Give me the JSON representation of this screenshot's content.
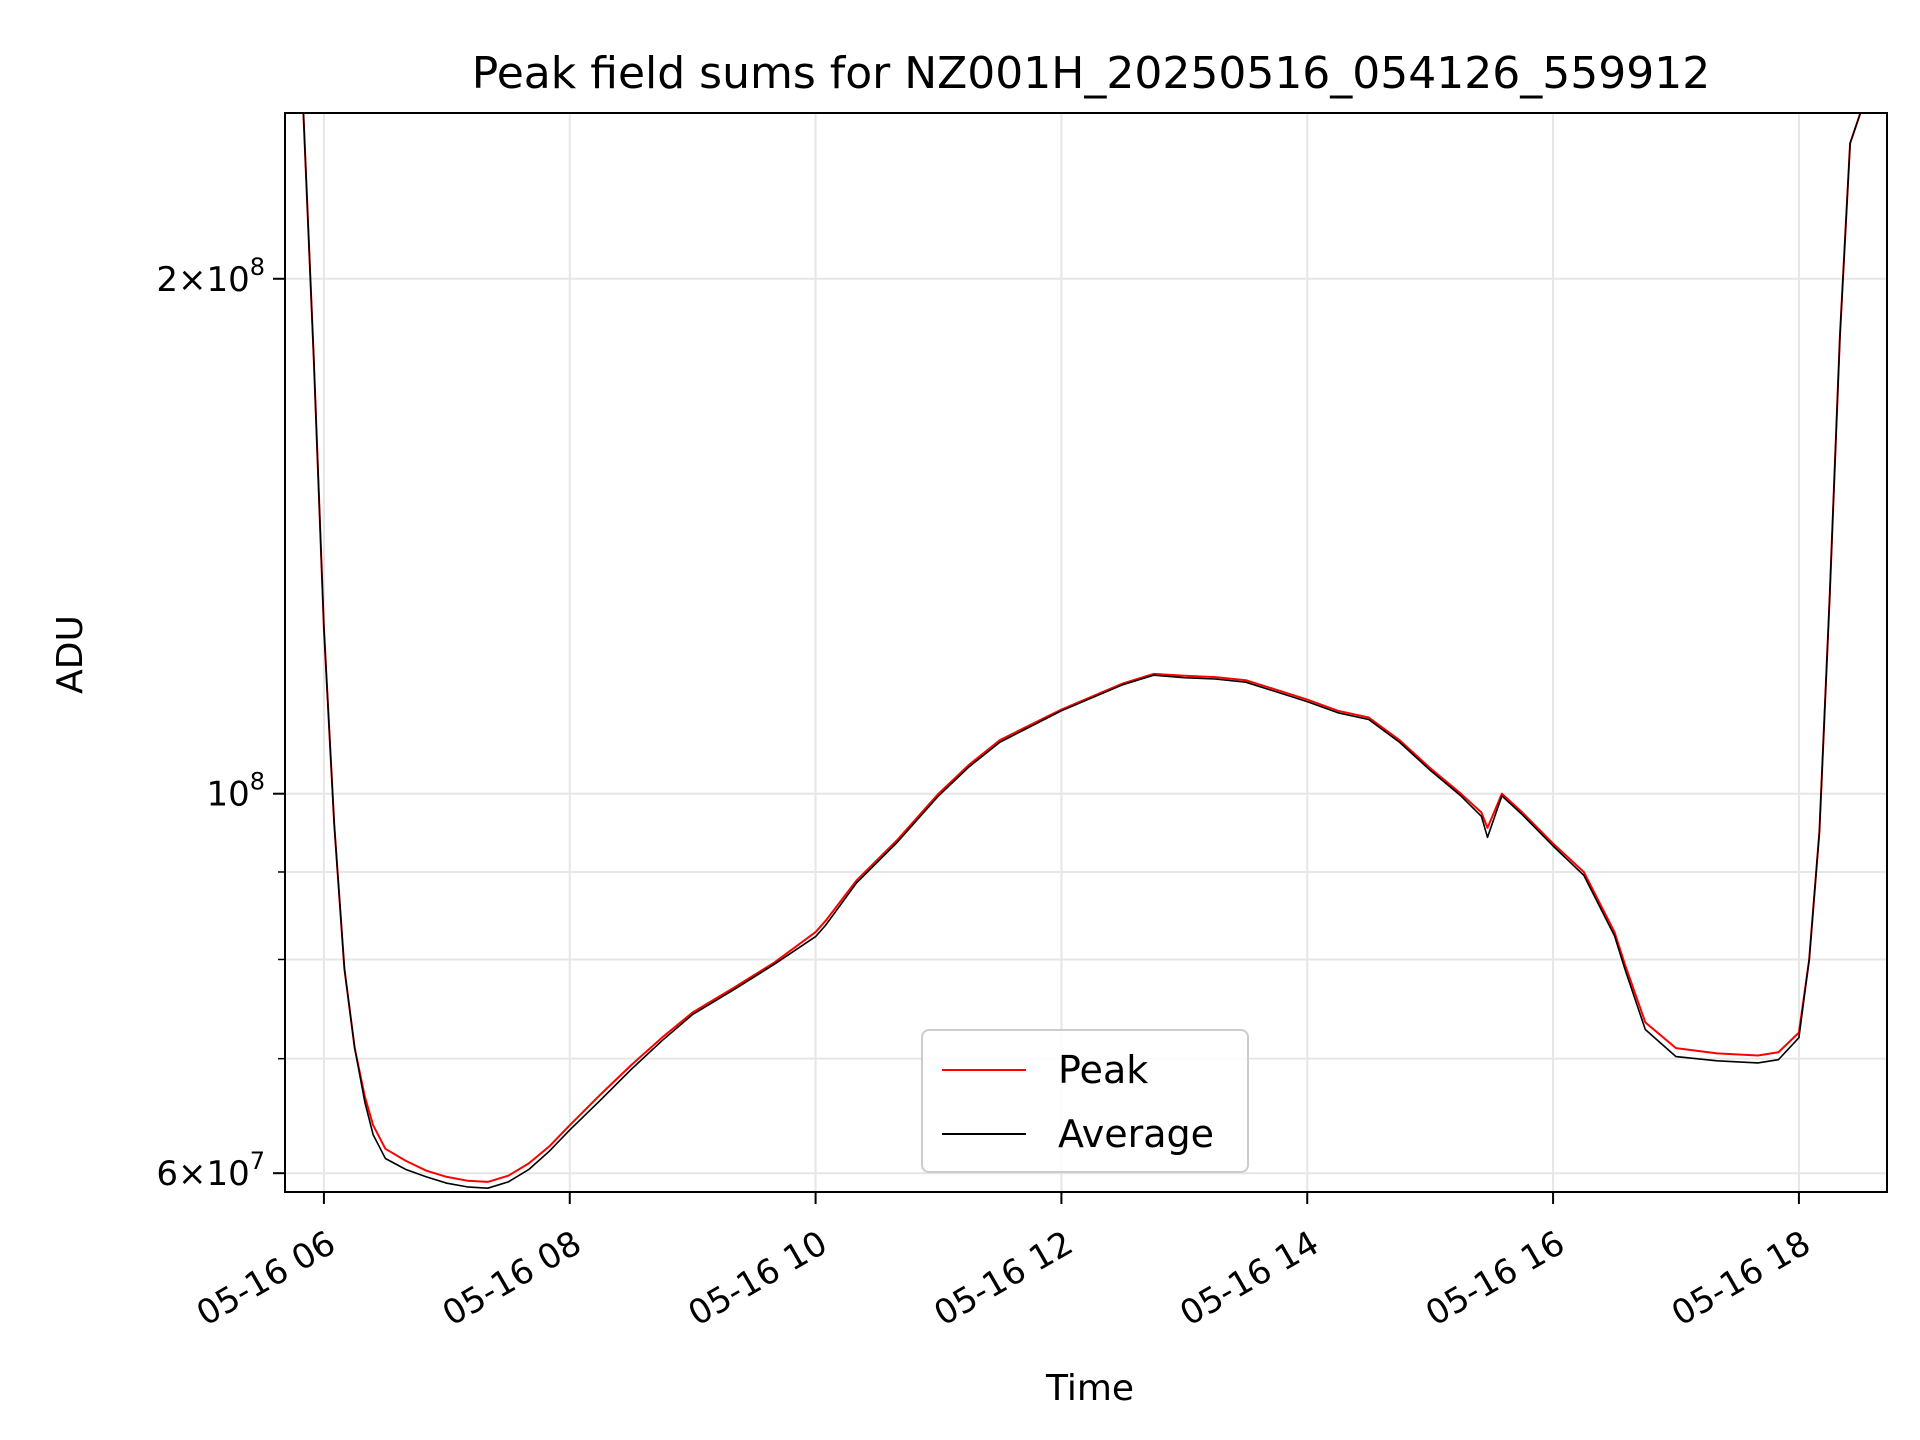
{
  "chart_data": {
    "type": "line",
    "title": "Peak field sums for NZ001H_20250516_054126_559912",
    "xlabel": "Time",
    "ylabel": "ADU",
    "yscale": "log",
    "ylim": [
      58500000,
      250000000
    ],
    "xlim": [
      "2025-05-16 05:41",
      "2025-05-16 18:43"
    ],
    "grid": true,
    "legend_position": "lower-center",
    "x_ticks": [
      {
        "t": "2025-05-16 06:00",
        "label": "05-16 06"
      },
      {
        "t": "2025-05-16 08:00",
        "label": "05-16 08"
      },
      {
        "t": "2025-05-16 10:00",
        "label": "05-16 10"
      },
      {
        "t": "2025-05-16 12:00",
        "label": "05-16 12"
      },
      {
        "t": "2025-05-16 14:00",
        "label": "05-16 14"
      },
      {
        "t": "2025-05-16 16:00",
        "label": "05-16 16"
      },
      {
        "t": "2025-05-16 18:00",
        "label": "05-16 18"
      }
    ],
    "y_ticks": [
      {
        "value": 60000000,
        "base": "6×10",
        "exp": "7"
      },
      {
        "value": 100000000,
        "base": "10",
        "exp": "8"
      },
      {
        "value": 200000000,
        "base": "2×10",
        "exp": "8"
      }
    ],
    "y_minor_ticks": [
      70000000,
      80000000,
      90000000
    ],
    "series": [
      {
        "name": "Peak",
        "color": "#ff0000",
        "x": [
          "2025-05-16 05:42",
          "2025-05-16 05:50",
          "2025-05-16 05:55",
          "2025-05-16 06:00",
          "2025-05-16 06:05",
          "2025-05-16 06:10",
          "2025-05-16 06:15",
          "2025-05-16 06:20",
          "2025-05-16 06:24",
          "2025-05-16 06:30",
          "2025-05-16 06:40",
          "2025-05-16 06:50",
          "2025-05-16 07:00",
          "2025-05-16 07:10",
          "2025-05-16 07:20",
          "2025-05-16 07:30",
          "2025-05-16 07:40",
          "2025-05-16 07:50",
          "2025-05-16 08:00",
          "2025-05-16 08:15",
          "2025-05-16 08:30",
          "2025-05-16 08:45",
          "2025-05-16 09:00",
          "2025-05-16 09:20",
          "2025-05-16 09:40",
          "2025-05-16 10:00",
          "2025-05-16 10:05",
          "2025-05-16 10:20",
          "2025-05-16 10:40",
          "2025-05-16 11:00",
          "2025-05-16 11:15",
          "2025-05-16 11:30",
          "2025-05-16 12:00",
          "2025-05-16 12:30",
          "2025-05-16 12:45",
          "2025-05-16 13:00",
          "2025-05-16 13:15",
          "2025-05-16 13:30",
          "2025-05-16 14:00",
          "2025-05-16 14:15",
          "2025-05-16 14:30",
          "2025-05-16 14:45",
          "2025-05-16 15:00",
          "2025-05-16 15:15",
          "2025-05-16 15:25",
          "2025-05-16 15:28",
          "2025-05-16 15:35",
          "2025-05-16 15:45",
          "2025-05-16 16:00",
          "2025-05-16 16:15",
          "2025-05-16 16:30",
          "2025-05-16 16:35",
          "2025-05-16 16:45",
          "2025-05-16 17:00",
          "2025-05-16 17:20",
          "2025-05-16 17:40",
          "2025-05-16 17:50",
          "2025-05-16 18:00",
          "2025-05-16 18:05",
          "2025-05-16 18:10",
          "2025-05-16 18:15",
          "2025-05-16 18:20",
          "2025-05-16 18:25",
          "2025-05-16 18:30"
        ],
        "y": [
          250000000,
          250000000,
          180000000,
          125000000,
          96000000,
          79000000,
          71000000,
          66500000,
          64000000,
          62000000,
          61000000,
          60200000,
          59700000,
          59400000,
          59300000,
          59800000,
          60800000,
          62200000,
          64000000,
          66700000,
          69400000,
          72000000,
          74500000,
          77000000,
          79700000,
          83000000,
          84300000,
          89000000,
          94000000,
          100000000,
          104000000,
          107500000,
          112000000,
          116000000,
          117500000,
          117200000,
          117000000,
          116500000,
          113500000,
          111800000,
          110800000,
          107500000,
          103500000,
          100000000,
          97500000,
          95500000,
          100000000,
          97500000,
          93500000,
          90000000,
          83000000,
          79500000,
          73500000,
          71000000,
          70500000,
          70300000,
          70600000,
          72500000,
          80000000,
          95000000,
          130000000,
          185000000,
          240000000,
          250000000
        ]
      },
      {
        "name": "Average",
        "color": "#000000",
        "x": [
          "2025-05-16 05:42",
          "2025-05-16 05:50",
          "2025-05-16 05:55",
          "2025-05-16 06:00",
          "2025-05-16 06:05",
          "2025-05-16 06:10",
          "2025-05-16 06:15",
          "2025-05-16 06:20",
          "2025-05-16 06:24",
          "2025-05-16 06:30",
          "2025-05-16 06:40",
          "2025-05-16 06:50",
          "2025-05-16 07:00",
          "2025-05-16 07:10",
          "2025-05-16 07:20",
          "2025-05-16 07:30",
          "2025-05-16 07:40",
          "2025-05-16 07:50",
          "2025-05-16 08:00",
          "2025-05-16 08:15",
          "2025-05-16 08:30",
          "2025-05-16 08:45",
          "2025-05-16 09:00",
          "2025-05-16 09:20",
          "2025-05-16 09:40",
          "2025-05-16 10:00",
          "2025-05-16 10:05",
          "2025-05-16 10:20",
          "2025-05-16 10:40",
          "2025-05-16 11:00",
          "2025-05-16 11:15",
          "2025-05-16 11:30",
          "2025-05-16 12:00",
          "2025-05-16 12:30",
          "2025-05-16 12:45",
          "2025-05-16 13:00",
          "2025-05-16 13:15",
          "2025-05-16 13:30",
          "2025-05-16 14:00",
          "2025-05-16 14:15",
          "2025-05-16 14:30",
          "2025-05-16 14:45",
          "2025-05-16 15:00",
          "2025-05-16 15:15",
          "2025-05-16 15:25",
          "2025-05-16 15:28",
          "2025-05-16 15:35",
          "2025-05-16 15:45",
          "2025-05-16 16:00",
          "2025-05-16 16:15",
          "2025-05-16 16:30",
          "2025-05-16 16:35",
          "2025-05-16 16:45",
          "2025-05-16 17:00",
          "2025-05-16 17:20",
          "2025-05-16 17:40",
          "2025-05-16 17:50",
          "2025-05-16 18:00",
          "2025-05-16 18:05",
          "2025-05-16 18:10",
          "2025-05-16 18:15",
          "2025-05-16 18:20",
          "2025-05-16 18:25",
          "2025-05-16 18:30"
        ],
        "y": [
          250000000,
          250000000,
          180000000,
          125000000,
          96000000,
          79000000,
          71000000,
          66000000,
          63200000,
          61200000,
          60300000,
          59700000,
          59200000,
          58900000,
          58800000,
          59300000,
          60300000,
          61800000,
          63600000,
          66200000,
          69000000,
          71700000,
          74300000,
          76800000,
          79500000,
          82500000,
          83800000,
          88700000,
          93700000,
          99700000,
          103700000,
          107200000,
          111800000,
          115800000,
          117300000,
          116900000,
          116700000,
          116200000,
          113200000,
          111500000,
          110500000,
          107200000,
          103200000,
          99700000,
          97000000,
          94300000,
          99700000,
          97200000,
          93200000,
          89600000,
          82600000,
          79000000,
          72800000,
          70200000,
          69800000,
          69600000,
          69900000,
          72000000,
          80000000,
          95000000,
          130000000,
          185000000,
          240000000,
          250000000
        ]
      }
    ]
  }
}
